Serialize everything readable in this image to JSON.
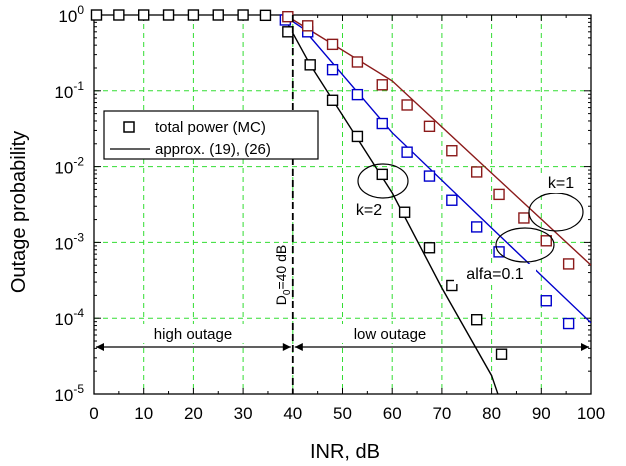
{
  "chart_data": {
    "type": "line",
    "xlabel": "INR, dB",
    "ylabel": "Outage probability",
    "xlim": [
      0,
      100
    ],
    "ylim_exp": [
      -5,
      0
    ],
    "yscale": "log",
    "grid": true,
    "x_ticks": [
      "0",
      "10",
      "20",
      "30",
      "40",
      "50",
      "60",
      "70",
      "80",
      "90",
      "100"
    ],
    "y_ticks": [
      {
        "base": "10",
        "exp": "0"
      },
      {
        "base": "10",
        "exp": "-1"
      },
      {
        "base": "10",
        "exp": "-2"
      },
      {
        "base": "10",
        "exp": "-3"
      },
      {
        "base": "10",
        "exp": "-4"
      },
      {
        "base": "10",
        "exp": "-5"
      }
    ],
    "legend": {
      "placement": "center-left",
      "entries": [
        {
          "label": "total power (MC)",
          "marker": "square"
        },
        {
          "label": "approx. (19), (26)",
          "marker": "line"
        }
      ]
    },
    "series": [
      {
        "name": "k=2",
        "color": "#000000",
        "line": [
          [
            38,
            1.0
          ],
          [
            43.5,
            0.22
          ],
          [
            60,
            0.0045
          ],
          [
            70,
            0.00025
          ],
          [
            80,
            1.75e-05
          ],
          [
            86.5,
            1e-06
          ]
        ],
        "points": [
          [
            0.5,
            1.0
          ],
          [
            5,
            1.0
          ],
          [
            10,
            1.0
          ],
          [
            15,
            1.0
          ],
          [
            20,
            1.0
          ],
          [
            25,
            1.0
          ],
          [
            30,
            1.0
          ],
          [
            34.5,
            0.99
          ],
          [
            39,
            0.6
          ],
          [
            43.5,
            0.22
          ],
          [
            48,
            0.075
          ],
          [
            53,
            0.025
          ],
          [
            58,
            0.0079
          ],
          [
            62.5,
            0.0025
          ],
          [
            67.5,
            0.00085
          ],
          [
            72,
            0.00027
          ],
          [
            77,
            9.55e-05
          ],
          [
            82,
            3.35e-05
          ]
        ]
      },
      {
        "name": "alfa=0.1",
        "color": "#0000cc",
        "line": [
          [
            38,
            1.0
          ],
          [
            42,
            0.67
          ],
          [
            60,
            0.028
          ],
          [
            80,
            0.00155
          ],
          [
            100,
            8.7e-05
          ]
        ],
        "points": [
          [
            38.5,
            0.86
          ],
          [
            43,
            0.6
          ],
          [
            48,
            0.19
          ],
          [
            53,
            0.089
          ],
          [
            58,
            0.037
          ],
          [
            63,
            0.0155
          ],
          [
            67.5,
            0.0075
          ],
          [
            72,
            0.0036
          ],
          [
            77,
            0.0016
          ],
          [
            81.5,
            0.00075
          ],
          [
            86.5,
            0.00037
          ],
          [
            91,
            0.00017
          ],
          [
            95.5,
            8.5e-05
          ]
        ]
      },
      {
        "name": "k=1",
        "color": "#8b1a1a",
        "line": [
          [
            38.5,
            1.0
          ],
          [
            60,
            0.135
          ],
          [
            80,
            0.0082
          ],
          [
            100,
            0.0005
          ]
        ],
        "points": [
          [
            39,
            0.95
          ],
          [
            43,
            0.72
          ],
          [
            48,
            0.41
          ],
          [
            53,
            0.24
          ],
          [
            58,
            0.12
          ],
          [
            63,
            0.065
          ],
          [
            67.5,
            0.034
          ],
          [
            72,
            0.0162
          ],
          [
            77,
            0.0085
          ],
          [
            81.5,
            0.0043
          ],
          [
            86.5,
            0.0021
          ],
          [
            91,
            0.00105
          ],
          [
            95.5,
            0.00052
          ]
        ]
      }
    ],
    "annotations": {
      "k2_label": "k=2",
      "k1_label": "k=1",
      "alfa_label": "alfa=0.1",
      "d0_label": "=40 dB",
      "d0_sym": "D",
      "d0_sub": "0",
      "d0_x": 40,
      "high_outage_label": "high outage",
      "low_outage_label": "low outage"
    }
  }
}
